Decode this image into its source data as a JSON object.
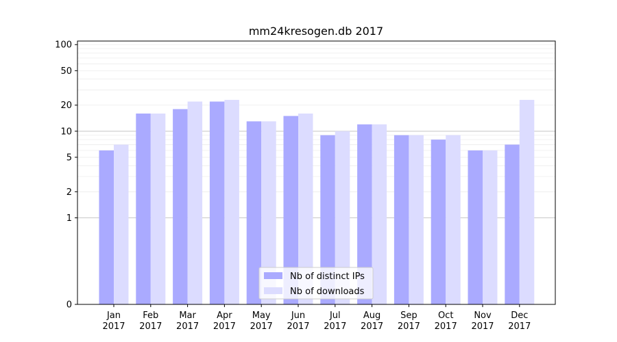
{
  "chart_data": {
    "type": "bar",
    "title": "mm24kresogen.db 2017",
    "xlabel": "",
    "ylabel": "",
    "y_scale": "symlog",
    "ylim": [
      0,
      110
    ],
    "y_ticks": [
      0,
      1,
      2,
      5,
      10,
      20,
      50,
      100
    ],
    "y_tick_labels": [
      "0",
      "1",
      "2",
      "5",
      "10",
      "20",
      "50",
      "100"
    ],
    "grid": "horizontal",
    "legend_position": "bottom-center",
    "categories": [
      "Jan\n2017",
      "Feb\n2017",
      "Mar\n2017",
      "Apr\n2017",
      "May\n2017",
      "Jun\n2017",
      "Jul\n2017",
      "Aug\n2017",
      "Sep\n2017",
      "Oct\n2017",
      "Nov\n2017",
      "Dec\n2017"
    ],
    "series": [
      {
        "name": "Nb of distinct IPs",
        "color": "#aaaaff",
        "values": [
          6,
          16,
          18,
          22,
          13,
          15,
          9,
          12,
          9,
          8,
          6,
          7
        ]
      },
      {
        "name": "Nb of downloads",
        "color": "#dcdcff",
        "values": [
          7,
          16,
          22,
          23,
          13,
          16,
          10,
          12,
          9,
          9,
          6,
          23
        ]
      }
    ]
  }
}
